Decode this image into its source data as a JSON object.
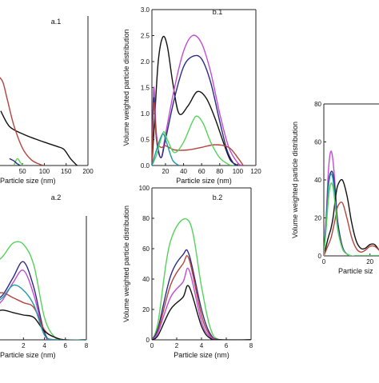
{
  "colors": {
    "black": "#111111",
    "magenta": "#c24bd6",
    "navy": "#2b2a86",
    "red": "#b3453d",
    "green": "#55d35a",
    "teal": "#1f9aa6"
  },
  "chart_data": [
    {
      "id": "a1",
      "panel_label": "a.1",
      "type": "line",
      "xlabel": "Particle size  (nm)",
      "ylabel": "",
      "xlim": [
        -20,
        200
      ],
      "ylim": [
        0,
        2.6
      ],
      "xticks": [
        "50",
        "100",
        "150",
        "200"
      ],
      "xtick_values": [
        50,
        100,
        150,
        200
      ],
      "yticks": [],
      "ytick_values": [],
      "series": [
        {
          "color": "black",
          "x": [
            0,
            20,
            50,
            80,
            110,
            130,
            145,
            160,
            175
          ],
          "y": [
            0.95,
            0.68,
            0.55,
            0.46,
            0.38,
            0.33,
            0.28,
            0.12,
            0.0
          ]
        },
        {
          "color": "red",
          "x": [
            -5,
            5,
            15,
            30,
            50,
            70,
            90,
            100
          ],
          "y": [
            1.55,
            1.45,
            1.15,
            0.7,
            0.3,
            0.1,
            0.02,
            0.0
          ]
        },
        {
          "color": "green",
          "x": [
            30,
            38,
            45,
            52
          ],
          "y": [
            0.0,
            0.12,
            0.05,
            0.0
          ]
        },
        {
          "color": "navy",
          "x": [
            20,
            30,
            38,
            45
          ],
          "y": [
            0.12,
            0.08,
            0.03,
            0.0
          ]
        }
      ]
    },
    {
      "id": "a2",
      "panel_label": "a.2",
      "type": "line",
      "xlabel": "Particle size  (nm)",
      "ylabel": "",
      "xlim": [
        -1,
        8
      ],
      "ylim": [
        0,
        100
      ],
      "xticks": [
        "2",
        "4",
        "6",
        "8"
      ],
      "xtick_values": [
        2,
        4,
        6,
        8
      ],
      "yticks": [],
      "ytick_values": [],
      "series": [
        {
          "color": "green",
          "x": [
            -1,
            0,
            1,
            2,
            3,
            4,
            5,
            6,
            8
          ],
          "y": [
            60,
            67,
            78,
            77,
            60,
            18,
            2,
            0,
            0
          ]
        },
        {
          "color": "navy",
          "x": [
            -1,
            0,
            1,
            2,
            3,
            4,
            5,
            8
          ],
          "y": [
            30,
            36,
            50,
            63,
            42,
            6,
            0,
            0
          ]
        },
        {
          "color": "magenta",
          "x": [
            -1,
            0,
            1,
            2,
            3,
            4,
            5,
            8
          ],
          "y": [
            24,
            32,
            46,
            56,
            36,
            4,
            0,
            0
          ]
        },
        {
          "color": "red",
          "x": [
            -1,
            0,
            1,
            2,
            3,
            4,
            5,
            6,
            8
          ],
          "y": [
            36,
            38,
            34,
            30,
            26,
            8,
            2,
            0,
            0
          ]
        },
        {
          "color": "black",
          "x": [
            -1,
            0,
            1,
            2,
            3,
            4,
            5,
            6,
            8
          ],
          "y": [
            22,
            24,
            22,
            20,
            18,
            7,
            2,
            0,
            0
          ]
        },
        {
          "color": "teal",
          "x": [
            -1,
            0,
            1,
            2,
            3,
            4,
            5,
            8
          ],
          "y": [
            28,
            34,
            44,
            40,
            28,
            4,
            0,
            0
          ]
        }
      ]
    },
    {
      "id": "b1",
      "panel_label": "b.1",
      "type": "line",
      "xlabel": "Particle size  (nm)",
      "ylabel": "Volume weighted particle distribution",
      "xlim": [
        5,
        120
      ],
      "ylim": [
        0,
        3.0
      ],
      "xticks": [
        "20",
        "40",
        "60",
        "80",
        "100",
        "120"
      ],
      "xtick_values": [
        20,
        40,
        60,
        80,
        100,
        120
      ],
      "yticks": [
        "0.0",
        "0.5",
        "1.0",
        "1.5",
        "2.0",
        "2.5",
        "3.0"
      ],
      "ytick_values": [
        0,
        0.5,
        1.0,
        1.5,
        2.0,
        2.5,
        3.0
      ],
      "series": [
        {
          "color": "black",
          "x": [
            5,
            8,
            12,
            17,
            22,
            28,
            35,
            45,
            55,
            65,
            75,
            85,
            92,
            100
          ],
          "y": [
            0.0,
            0.9,
            2.0,
            2.47,
            2.3,
            1.6,
            1.0,
            1.15,
            1.42,
            1.3,
            0.9,
            0.4,
            0.1,
            0.0
          ]
        },
        {
          "color": "magenta",
          "x": [
            5,
            7,
            10,
            15,
            20,
            30,
            40,
            50,
            60,
            70,
            80,
            90,
            100,
            106
          ],
          "y": [
            0.0,
            1.5,
            0.6,
            0.15,
            0.6,
            1.5,
            2.2,
            2.5,
            2.35,
            1.8,
            1.0,
            0.35,
            0.05,
            0.0
          ]
        },
        {
          "color": "navy",
          "x": [
            5,
            7,
            10,
            15,
            20,
            30,
            40,
            50,
            60,
            70,
            80,
            88,
            95,
            100
          ],
          "y": [
            0.0,
            1.3,
            0.5,
            0.15,
            0.5,
            1.3,
            1.9,
            2.1,
            2.05,
            1.6,
            0.85,
            0.3,
            0.05,
            0.0
          ]
        },
        {
          "color": "red",
          "x": [
            5,
            7,
            10,
            15,
            20,
            30,
            45,
            60,
            75,
            90,
            100,
            106
          ],
          "y": [
            0.0,
            1.2,
            0.5,
            0.35,
            0.38,
            0.3,
            0.3,
            0.35,
            0.4,
            0.35,
            0.15,
            0.0
          ]
        },
        {
          "color": "green",
          "x": [
            5,
            10,
            14,
            18,
            22,
            30,
            40,
            50,
            55,
            62,
            70,
            80,
            90,
            96
          ],
          "y": [
            0.0,
            0.2,
            0.45,
            0.65,
            0.5,
            0.25,
            0.45,
            0.85,
            0.95,
            0.8,
            0.45,
            0.15,
            0.02,
            0.0
          ]
        },
        {
          "color": "teal",
          "x": [
            5,
            10,
            15,
            18,
            22,
            28,
            35
          ],
          "y": [
            0.0,
            0.3,
            0.55,
            0.6,
            0.4,
            0.1,
            0.0
          ]
        }
      ]
    },
    {
      "id": "b2",
      "panel_label": "b.2",
      "type": "line",
      "xlabel": "Particle size  (nm)",
      "ylabel": "Volume weighted particle distribution",
      "xlim": [
        0,
        8
      ],
      "ylim": [
        0,
        100
      ],
      "xticks": [
        "0",
        "2",
        "4",
        "6",
        "8"
      ],
      "xtick_values": [
        0,
        2,
        4,
        6,
        8
      ],
      "yticks": [
        "0",
        "20",
        "40",
        "60",
        "80",
        "100"
      ],
      "ytick_values": [
        0,
        20,
        40,
        60,
        80,
        100
      ],
      "series": [
        {
          "color": "green",
          "x": [
            0,
            0.5,
            1.5,
            3,
            4,
            4.7,
            5.5,
            8
          ],
          "y": [
            0,
            12,
            65,
            78,
            35,
            8,
            0,
            0
          ]
        },
        {
          "color": "navy",
          "x": [
            0,
            0.5,
            1.5,
            2.5,
            3,
            4,
            4.7,
            5.5,
            8
          ],
          "y": [
            0,
            8,
            42,
            56,
            56,
            20,
            4,
            0,
            0
          ]
        },
        {
          "color": "red",
          "x": [
            0,
            0.5,
            1.5,
            2.5,
            3,
            4,
            4.7,
            5.5,
            8
          ],
          "y": [
            0,
            6,
            36,
            50,
            53,
            16,
            3,
            0,
            0
          ]
        },
        {
          "color": "magenta",
          "x": [
            0,
            0.5,
            1.5,
            2.5,
            3,
            4,
            4.7,
            5.5,
            8
          ],
          "y": [
            0,
            5,
            28,
            38,
            46,
            12,
            2,
            0,
            0
          ]
        },
        {
          "color": "black",
          "x": [
            0,
            0.5,
            1.5,
            2.5,
            3,
            4,
            4.7,
            5.5,
            8
          ],
          "y": [
            0,
            3,
            20,
            28,
            35,
            9,
            1,
            0,
            0
          ]
        }
      ]
    },
    {
      "id": "c",
      "panel_label": "",
      "type": "line",
      "xlabel": "Particle siz",
      "ylabel": "Volume weighted particle distribution",
      "xlim": [
        0,
        26
      ],
      "ylim": [
        0,
        80
      ],
      "xticks": [
        "0",
        "20"
      ],
      "xtick_values": [
        0,
        20
      ],
      "yticks": [
        "0",
        "20",
        "40",
        "60",
        "80"
      ],
      "ytick_values": [
        0,
        20,
        40,
        60,
        80
      ],
      "series": [
        {
          "color": "magenta",
          "x": [
            0,
            1,
            2,
            3,
            4,
            5,
            6,
            8,
            10,
            12,
            14,
            16,
            18,
            20,
            22,
            24,
            26
          ],
          "y": [
            0,
            20,
            45,
            55,
            50,
            35,
            18,
            5,
            1,
            0,
            0,
            0,
            0,
            0,
            0,
            0,
            0
          ]
        },
        {
          "color": "navy",
          "x": [
            0,
            1,
            2,
            3,
            4,
            5,
            6,
            8,
            10,
            12,
            14,
            16,
            18,
            20,
            22,
            24,
            26
          ],
          "y": [
            0,
            18,
            38,
            44,
            43,
            32,
            18,
            5,
            1,
            0,
            0,
            0,
            0,
            0,
            0,
            0,
            0
          ]
        },
        {
          "color": "teal",
          "x": [
            0,
            1,
            2,
            3,
            4,
            5,
            6,
            8,
            10,
            12,
            14,
            16,
            18,
            20,
            22,
            24,
            26
          ],
          "y": [
            0,
            16,
            36,
            43,
            40,
            28,
            15,
            4,
            1,
            0,
            0,
            0,
            0,
            0,
            0,
            0,
            0
          ]
        },
        {
          "color": "black",
          "x": [
            0,
            1,
            2,
            3,
            4,
            5,
            6,
            8,
            10,
            12,
            14,
            16,
            18,
            20,
            22,
            24,
            26
          ],
          "y": [
            0,
            5,
            10,
            14,
            20,
            30,
            37,
            40,
            32,
            18,
            8,
            4,
            4,
            6,
            6,
            3,
            1
          ]
        },
        {
          "color": "red",
          "x": [
            0,
            1,
            2,
            3,
            4,
            5,
            6,
            8,
            10,
            12,
            14,
            16,
            18,
            20,
            22,
            24,
            26
          ],
          "y": [
            0,
            3,
            6,
            9,
            14,
            20,
            26,
            28,
            20,
            10,
            4,
            2,
            3,
            5,
            5,
            3,
            1
          ]
        },
        {
          "color": "green",
          "x": [
            0,
            1,
            2,
            3,
            4,
            5,
            6,
            8,
            10,
            12,
            14,
            16,
            18,
            20,
            22,
            24,
            26
          ],
          "y": [
            0,
            14,
            30,
            38,
            36,
            26,
            14,
            4,
            1,
            0,
            0,
            0,
            0,
            0,
            0,
            0,
            0
          ]
        }
      ]
    }
  ]
}
